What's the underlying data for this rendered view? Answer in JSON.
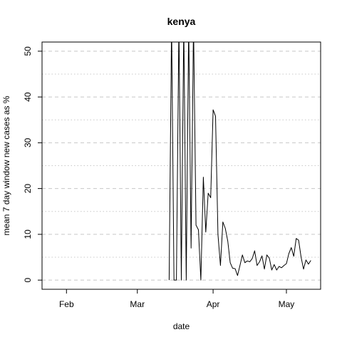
{
  "chart_data": {
    "type": "line",
    "title": "kenya",
    "xlabel": "date",
    "ylabel": "mean  7  day window new cases as %",
    "x_ticks": [
      {
        "label": "Feb",
        "date": "2020-02-01"
      },
      {
        "label": "Mar",
        "date": "2020-03-01"
      },
      {
        "label": "Apr",
        "date": "2020-04-01"
      },
      {
        "label": "May",
        "date": "2020-05-01"
      }
    ],
    "xlim": [
      "2020-01-22",
      "2020-05-15"
    ],
    "ylim": [
      -2,
      52
    ],
    "y_ticks": [
      0,
      10,
      20,
      30,
      40,
      50
    ],
    "y_minor_gridlines": [
      5,
      15,
      25,
      35,
      45
    ],
    "grid": true,
    "series": [
      {
        "x": [
          "2020-03-14",
          "2020-03-15",
          "2020-03-16",
          "2020-03-17",
          "2020-03-18",
          "2020-03-19",
          "2020-03-20",
          "2020-03-21",
          "2020-03-22",
          "2020-03-23",
          "2020-03-24",
          "2020-03-25",
          "2020-03-26",
          "2020-03-27",
          "2020-03-28",
          "2020-03-29",
          "2020-03-30",
          "2020-03-31",
          "2020-04-01",
          "2020-04-02",
          "2020-04-03",
          "2020-04-04",
          "2020-04-05",
          "2020-04-06",
          "2020-04-07",
          "2020-04-08",
          "2020-04-09",
          "2020-04-10",
          "2020-04-11",
          "2020-04-12",
          "2020-04-13",
          "2020-04-14",
          "2020-04-15",
          "2020-04-16",
          "2020-04-17",
          "2020-04-18",
          "2020-04-19",
          "2020-04-20",
          "2020-04-21",
          "2020-04-22",
          "2020-04-23",
          "2020-04-24",
          "2020-04-25",
          "2020-04-26",
          "2020-04-27",
          "2020-04-28",
          "2020-04-29",
          "2020-04-30",
          "2020-05-01",
          "2020-05-02",
          "2020-05-03",
          "2020-05-04",
          "2020-05-05",
          "2020-05-06",
          "2020-05-07",
          "2020-05-08",
          "2020-05-09",
          "2020-05-10",
          "2020-05-11"
        ],
        "y": [
          0,
          56,
          0,
          0,
          56,
          0,
          56,
          0,
          56,
          7,
          56,
          12,
          11,
          0,
          22.5,
          10.5,
          19,
          18,
          37.2,
          35.8,
          10,
          3.2,
          12.7,
          11.3,
          8.5,
          3.8,
          2.6,
          2.5,
          1.0,
          3.2,
          5.5,
          3.8,
          4.2,
          4.0,
          4.7,
          6.4,
          3.2,
          4.0,
          5.3,
          2.4,
          5.5,
          4.8,
          2.2,
          3.4,
          2.2,
          3.0,
          2.7,
          3.2,
          3.6,
          5.8,
          7.1,
          5.2,
          9.1,
          8.7,
          5.0,
          2.4,
          4.4,
          3.5,
          4.3
        ]
      }
    ]
  }
}
